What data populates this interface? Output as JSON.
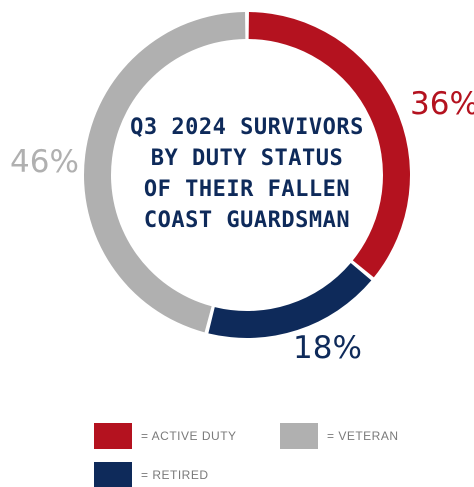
{
  "chart_data": {
    "type": "pie",
    "title_lines": [
      "Q3 2024 SURVIVORS",
      "BY DUTY STATUS",
      "OF THEIR FALLEN",
      "COAST GUARDSMAN"
    ],
    "slices": [
      {
        "label": "= ACTIVE DUTY",
        "value": 36,
        "display": "36%",
        "color": "#b4121f"
      },
      {
        "label": "= RETIRED",
        "value": 18,
        "display": "18%",
        "color": "#0e2a5a"
      },
      {
        "label": "= VETERAN",
        "value": 46,
        "display": "46%",
        "color": "#b0b0b0"
      }
    ],
    "legend_placement": "bottom"
  }
}
